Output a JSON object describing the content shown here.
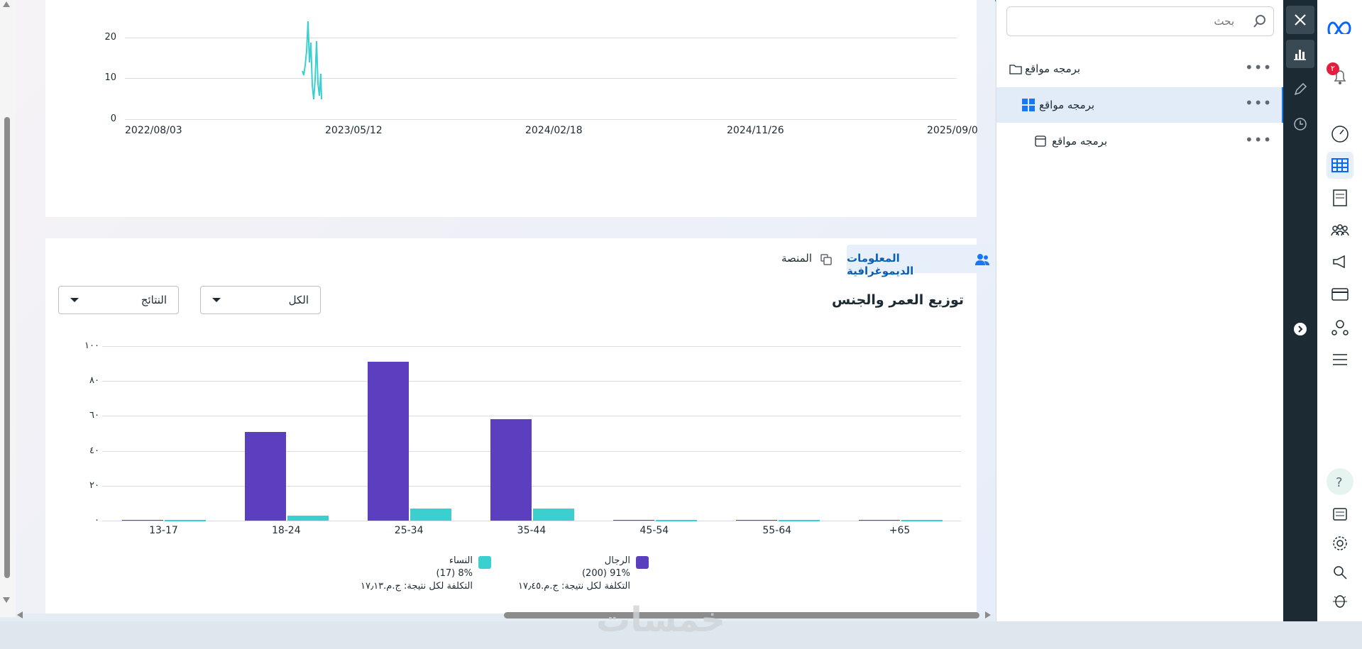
{
  "top_chart": {
    "x_ticks": [
      "2022/08/03",
      "2023/05/12",
      "2024/02/18",
      "2024/11/26",
      "2025/09/0"
    ],
    "y_ticks": [
      "0",
      "10",
      "20"
    ],
    "series_color": "#3ccfcf"
  },
  "demographics": {
    "tabs": [
      {
        "label": "المعلومات الديموغرافية",
        "icon": "people-icon",
        "active": true
      },
      {
        "label": "المنصة",
        "icon": "copy-icon",
        "active": false
      }
    ],
    "title": "توزيع العمر والجنس",
    "filters": {
      "all_label": "الكل",
      "results_label": "النتائج"
    }
  },
  "chart_data": {
    "type": "bar",
    "categories": [
      "13-17",
      "18-24",
      "25-34",
      "35-44",
      "45-54",
      "55-64",
      "+65"
    ],
    "series": [
      {
        "name": "الرجال",
        "color": "#5b3fbf",
        "values": [
          0.5,
          51,
          91,
          58,
          0.5,
          0.5,
          0.5
        ]
      },
      {
        "name": "النساء",
        "color": "#3ccfcf",
        "values": [
          0.3,
          3,
          7,
          7,
          0.3,
          0.3,
          0.3
        ]
      }
    ],
    "y_ticks": [
      "٠",
      "٢٠",
      "٤٠",
      "٦٠",
      "٨٠",
      "١٠٠"
    ],
    "ylim": [
      0,
      100
    ],
    "grid": true,
    "legend_position": "bottom"
  },
  "legend": {
    "men": {
      "name": "الرجال",
      "line1": "91% (200)",
      "line2": "التكلفة لكل نتيجة: ج.م.١٧٫٤٥"
    },
    "women": {
      "name": "النساء",
      "line1": "8% (17)",
      "line2": "التكلفة لكل نتيجة: ج.م.١٧٫١٣"
    }
  },
  "nav_panel": {
    "search_placeholder": "بحث",
    "items": [
      {
        "label": "برمجه مواقع",
        "icon": "folder-icon",
        "level": 0
      },
      {
        "label": "برمجه مواقع",
        "icon": "grid-icon",
        "level": 1
      },
      {
        "label": "برمجه مواقع",
        "icon": "window-icon",
        "level": 2
      }
    ]
  },
  "notification_badge": "٢",
  "watermark": "خمسات"
}
